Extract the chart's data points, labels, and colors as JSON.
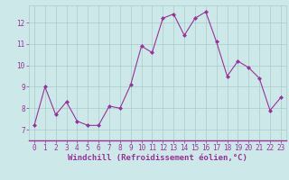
{
  "x": [
    0,
    1,
    2,
    3,
    4,
    5,
    6,
    7,
    8,
    9,
    10,
    11,
    12,
    13,
    14,
    15,
    16,
    17,
    18,
    19,
    20,
    21,
    22,
    23
  ],
  "y": [
    7.2,
    9.0,
    7.7,
    8.3,
    7.4,
    7.2,
    7.2,
    8.1,
    8.0,
    9.1,
    10.9,
    10.6,
    12.2,
    12.4,
    11.4,
    12.2,
    12.5,
    11.1,
    9.5,
    10.2,
    9.9,
    9.4,
    7.9,
    8.5
  ],
  "line_color": "#993399",
  "marker": "D",
  "marker_size": 2,
  "bg_color": "#cce8e8",
  "grid_color": "#aacccc",
  "xlabel": "Windchill (Refroidissement éolien,°C)",
  "xlabel_color": "#993399",
  "ylim": [
    6.5,
    12.8
  ],
  "xlim": [
    -0.5,
    23.5
  ],
  "yticks": [
    7,
    8,
    9,
    10,
    11,
    12
  ],
  "xticks": [
    0,
    1,
    2,
    3,
    4,
    5,
    6,
    7,
    8,
    9,
    10,
    11,
    12,
    13,
    14,
    15,
    16,
    17,
    18,
    19,
    20,
    21,
    22,
    23
  ],
  "tick_color": "#993399",
  "tick_fontsize": 5.5,
  "xlabel_fontsize": 6.5,
  "spine_color": "#993399"
}
